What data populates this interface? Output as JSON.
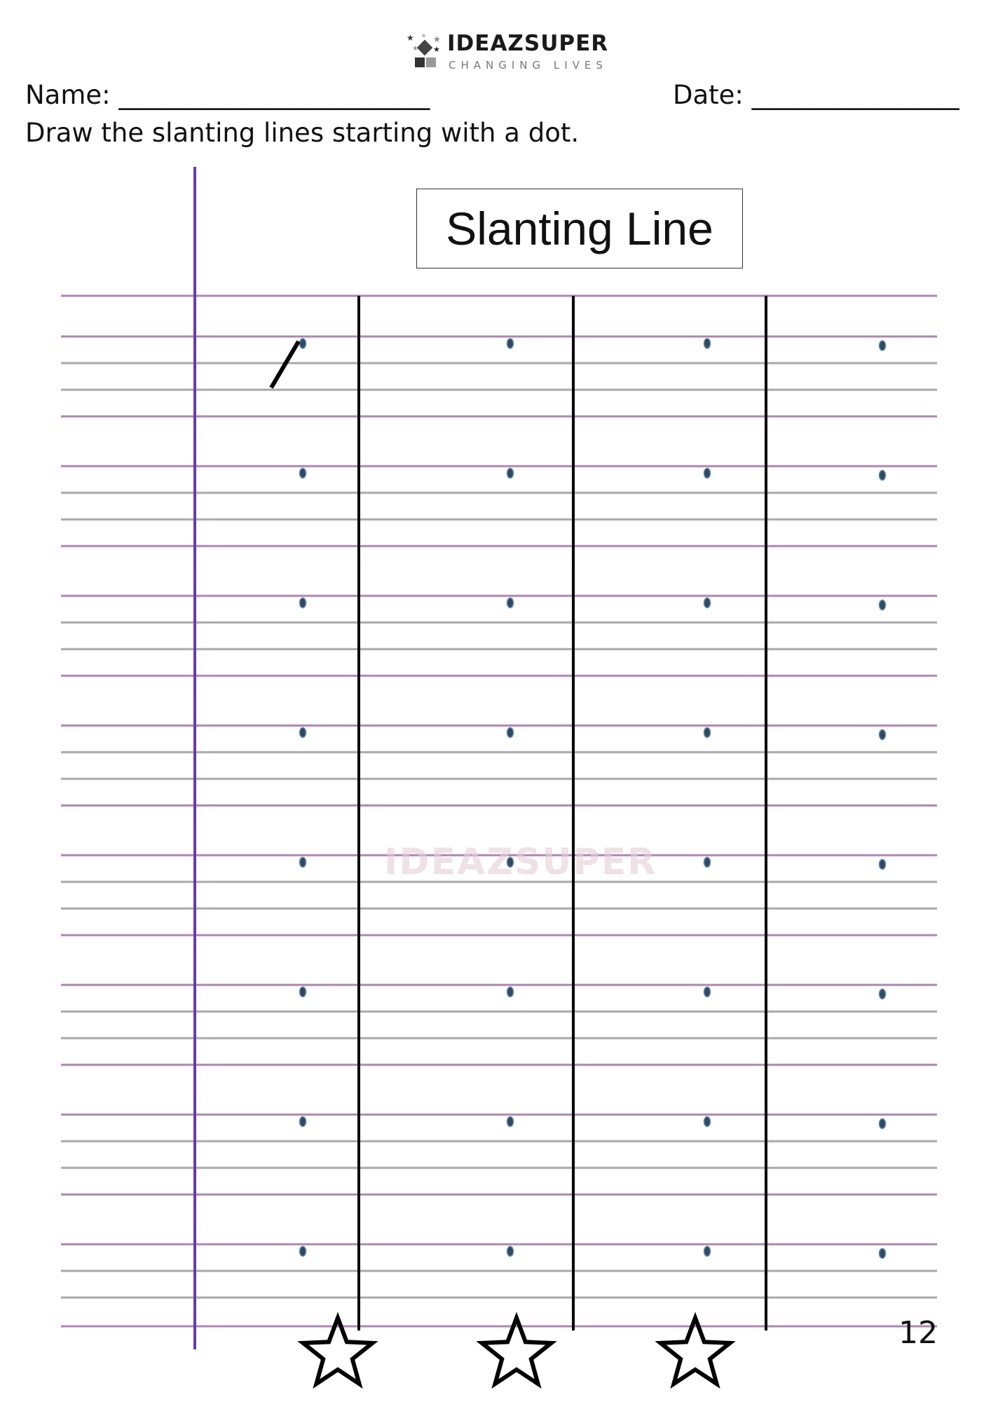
{
  "logo": {
    "name": "IDEAZSUPER",
    "tagline": "CHANGING LIVES"
  },
  "header": {
    "name_label": "Name: ________________________",
    "date_label": "Date: ________________"
  },
  "instruction": "Draw the slanting lines starting with a dot.",
  "title": "Slanting Line",
  "page_number": "12",
  "watermark": "IDEAZSUPER",
  "colors": {
    "ruling_purple": "#a070a8",
    "ruling_gray": "#9a9a9a",
    "margin": "#6a3aa8",
    "dot": "#2c4a66",
    "divider": "#000000"
  },
  "worksheet": {
    "columns": 4,
    "dot_rows": 8,
    "example_stroke": "slanting-line"
  },
  "stars": 3
}
